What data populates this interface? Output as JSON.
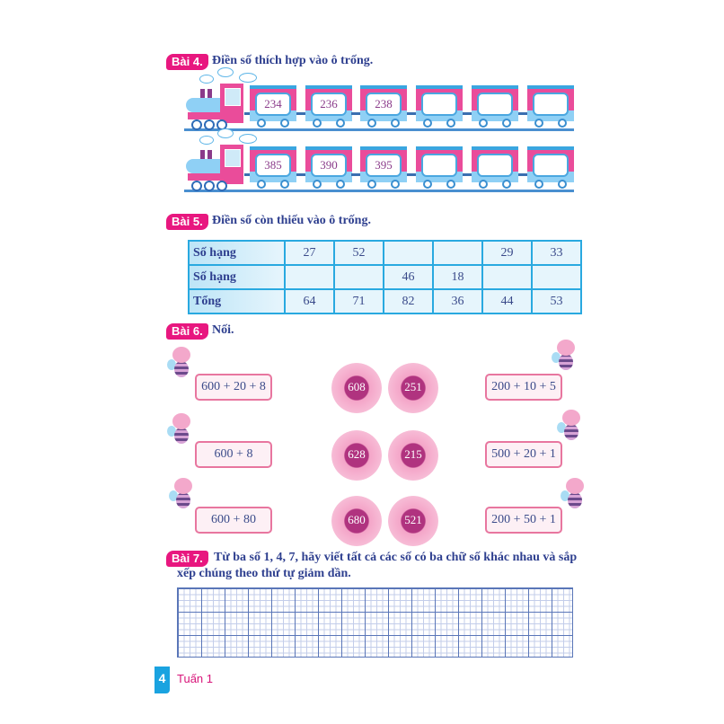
{
  "bai4": {
    "badge": "Bài 4.",
    "instruction": "Điền số thích hợp vào ô trống.",
    "trains": [
      {
        "cars": [
          "234",
          "236",
          "238",
          "",
          "",
          ""
        ]
      },
      {
        "cars": [
          "385",
          "390",
          "395",
          "",
          "",
          ""
        ]
      }
    ]
  },
  "bai5": {
    "badge": "Bài 5.",
    "instruction": "Điền số còn thiếu vào ô trống.",
    "rows": [
      {
        "label": "Số hạng",
        "cells": [
          "27",
          "52",
          "",
          "",
          "29",
          "33"
        ]
      },
      {
        "label": "Số hạng",
        "cells": [
          "",
          "",
          "46",
          "18",
          "",
          ""
        ]
      },
      {
        "label": "Tổng",
        "cells": [
          "64",
          "71",
          "82",
          "36",
          "44",
          "53"
        ]
      }
    ]
  },
  "bai6": {
    "badge": "Bài 6.",
    "instruction": "Nối.",
    "left": [
      "600 + 20 + 8",
      "600 + 8",
      "600 + 80"
    ],
    "flowers": [
      [
        "608",
        "251"
      ],
      [
        "628",
        "215"
      ],
      [
        "680",
        "521"
      ]
    ],
    "right": [
      "200 + 10 + 5",
      "500 + 20 + 1",
      "200 + 50 + 1"
    ]
  },
  "bai7": {
    "badge": "Bài 7.",
    "instruction_line1": "Từ ba số 1, 4, 7, hãy viết tất cả các số có ba chữ số khác nhau và sắp",
    "instruction_line2": "xếp chúng theo thứ tự giảm dần."
  },
  "footer": {
    "page_number": "4",
    "week": "Tuấn 1"
  },
  "colors": {
    "badge": "#e8177f",
    "text": "#2e3f8f",
    "table_border": "#29a9e0",
    "train_pink": "#ea4c9a",
    "train_blue": "#8fd0f5"
  }
}
